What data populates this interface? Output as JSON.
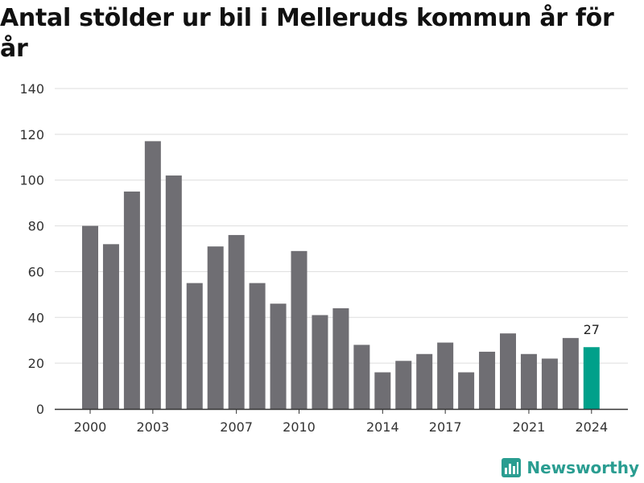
{
  "chart_data": {
    "type": "bar",
    "title": "Antal stölder ur bil i Melleruds kommun år för år",
    "categories": [
      2000,
      2001,
      2002,
      2003,
      2004,
      2005,
      2006,
      2007,
      2008,
      2009,
      2010,
      2011,
      2012,
      2013,
      2014,
      2015,
      2016,
      2017,
      2018,
      2019,
      2020,
      2021,
      2022,
      2023,
      2024
    ],
    "values": [
      80,
      72,
      95,
      117,
      102,
      55,
      71,
      76,
      55,
      46,
      69,
      41,
      44,
      28,
      16,
      21,
      24,
      29,
      16,
      25,
      33,
      24,
      22,
      31,
      27
    ],
    "x_tick_labels": [
      "2000",
      "2003",
      "2007",
      "2010",
      "2014",
      "2017",
      "2021",
      "2024"
    ],
    "y_ticks": [
      0,
      20,
      40,
      60,
      80,
      100,
      120,
      140
    ],
    "ylim": [
      0,
      140
    ],
    "xlabel": "",
    "ylabel": "",
    "grid": true,
    "highlight": {
      "category": 2024,
      "label": "27",
      "color": "#00a08a"
    },
    "bar_color": "#6f6e73"
  },
  "branding": {
    "name": "Newsworthy",
    "color": "#2a9d91"
  }
}
